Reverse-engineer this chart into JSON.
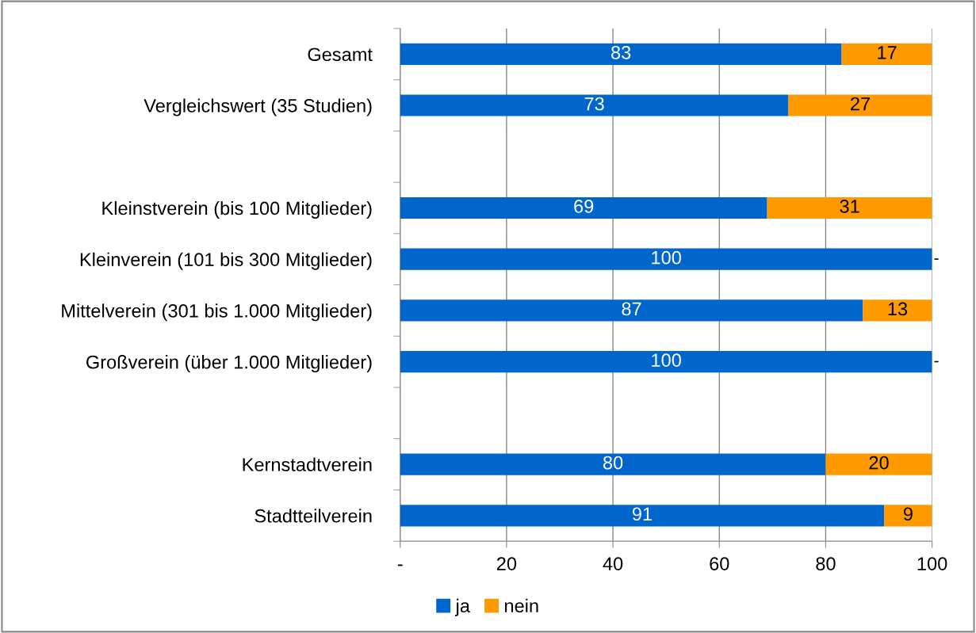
{
  "chart_data": {
    "type": "bar",
    "orientation": "horizontal",
    "stacked": true,
    "categories": [
      "Gesamt",
      "Vergleichswert (35 Studien)",
      null,
      "Kleinstverein (bis 100 Mitglieder)",
      "Kleinverein (101 bis 300 Mitglieder)",
      "Mittelverein (301 bis 1.000 Mitglieder)",
      "Großverein (über 1.000 Mitglieder)",
      null,
      "Kernstadtverein",
      "Stadtteilverein"
    ],
    "series": [
      {
        "name": "ja",
        "color": "#0066cc",
        "values": [
          83,
          73,
          null,
          69,
          100,
          87,
          100,
          null,
          80,
          91
        ],
        "value_labels": [
          "83",
          "73",
          null,
          "69",
          "100",
          "87",
          "100",
          null,
          "80",
          "91"
        ]
      },
      {
        "name": "nein",
        "color": "#ff9900",
        "values": [
          17,
          27,
          null,
          31,
          0,
          13,
          0,
          null,
          20,
          9
        ],
        "value_labels": [
          "17",
          "27",
          null,
          "31",
          "-",
          "13",
          "-",
          null,
          "20",
          "9"
        ]
      }
    ],
    "xlim": [
      0,
      100
    ],
    "xticks": [
      {
        "value": 0,
        "label": "-"
      },
      20,
      40,
      60,
      80,
      100
    ],
    "grid": "x",
    "legend": "bottom"
  }
}
